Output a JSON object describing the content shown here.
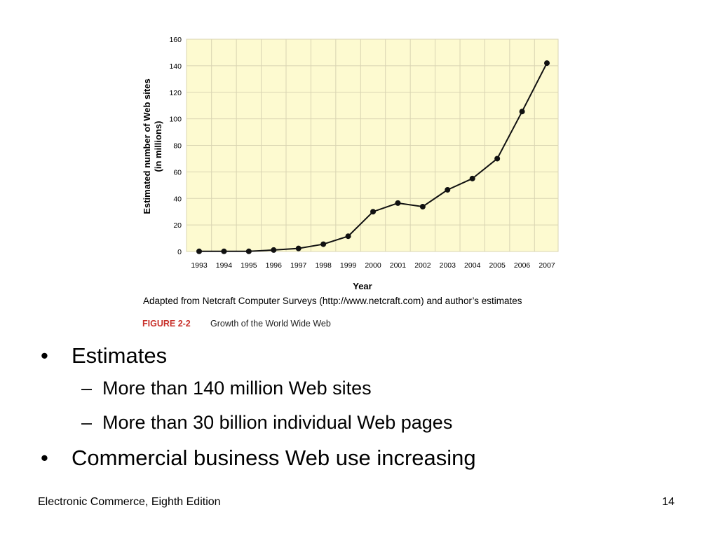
{
  "chart_data": {
    "type": "line",
    "x": [
      "1993",
      "1994",
      "1995",
      "1996",
      "1997",
      "1998",
      "1999",
      "2000",
      "2001",
      "2002",
      "2003",
      "2004",
      "2005",
      "2006",
      "2007"
    ],
    "series": [
      {
        "values": [
          0.1,
          0.1,
          0.1,
          1.1,
          2.3,
          5.5,
          11.5,
          30,
          36.5,
          33.8,
          46.5,
          55,
          70,
          105.5,
          142
        ]
      }
    ],
    "ylim": [
      0,
      160
    ],
    "yticks": [
      0,
      20,
      40,
      60,
      80,
      100,
      120,
      140,
      160
    ],
    "xlabel": "Year",
    "ylabel": "Estimated number of Web sites",
    "ylabel_line2": "(in millions)",
    "grid": true,
    "source": "Adapted from Netcraft Computer Surveys (http://www.netcraft.com) and author’s estimates",
    "figure_label": "FIGURE 2-2",
    "figure_caption": "Growth of the World Wide Web",
    "colors": {
      "plot_background": "#fdfad0",
      "grid": "#d9d4b2",
      "line": "#111111",
      "figure_label": "#c8312b"
    }
  },
  "bullets": {
    "item1": "Estimates",
    "sub1": "More than 140 million Web sites",
    "sub2": "More than 30 billion individual Web pages",
    "item2": "Commercial business Web use increasing",
    "bullet_marker": "•",
    "sub_marker": "–"
  },
  "footer": {
    "title": "Electronic Commerce, Eighth Edition",
    "page": "14"
  }
}
